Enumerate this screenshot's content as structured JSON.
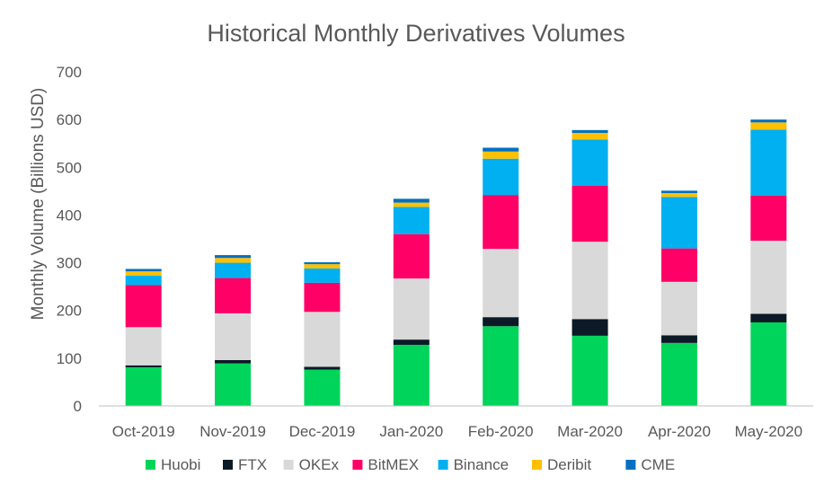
{
  "chart_data": {
    "type": "bar",
    "stacked": true,
    "title": "Historical Monthly Derivatives Volumes",
    "xlabel": "",
    "ylabel": "Monthly Volume (Billions USD)",
    "ylim": [
      0,
      700
    ],
    "yticks": [
      0,
      100,
      200,
      300,
      400,
      500,
      600,
      700
    ],
    "grid": false,
    "legend_position": "bottom",
    "categories": [
      "Oct-2019",
      "Nov-2019",
      "Dec-2019",
      "Jan-2020",
      "Feb-2020",
      "Mar-2020",
      "Apr-2020",
      "May-2020"
    ],
    "series": [
      {
        "name": "Huobi",
        "color": "#00d45a",
        "values": [
          81,
          89,
          76,
          128,
          167,
          147,
          132,
          175
        ]
      },
      {
        "name": "FTX",
        "color": "#0b1a26",
        "values": [
          4,
          7,
          6,
          11,
          19,
          35,
          16,
          18
        ]
      },
      {
        "name": "OKEx",
        "color": "#d9d9d9",
        "values": [
          80,
          98,
          115,
          128,
          143,
          162,
          112,
          153
        ]
      },
      {
        "name": "BitMEX",
        "color": "#ff0066",
        "values": [
          88,
          74,
          61,
          93,
          113,
          117,
          70,
          95
        ]
      },
      {
        "name": "Binance",
        "color": "#00b0f0",
        "values": [
          20,
          32,
          30,
          57,
          76,
          97,
          108,
          138
        ]
      },
      {
        "name": "Deribit",
        "color": "#ffc000",
        "values": [
          9,
          10,
          9,
          9,
          15,
          14,
          8,
          15
        ]
      },
      {
        "name": "CME",
        "color": "#0070c0",
        "values": [
          5,
          6,
          4,
          8,
          8,
          6,
          5,
          6
        ]
      }
    ]
  }
}
